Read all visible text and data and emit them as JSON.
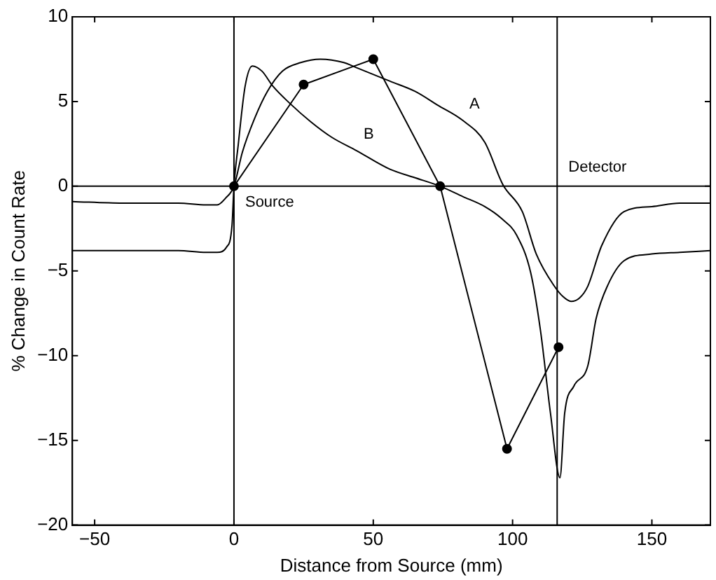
{
  "chart_data": {
    "type": "line",
    "xlabel": "Distance from Source (mm)",
    "ylabel": "% Change in Count Rate",
    "xlim": [
      -58,
      171
    ],
    "ylim": [
      -20,
      10
    ],
    "xticks": [
      -50,
      0,
      50,
      100,
      150
    ],
    "yticks": [
      -20,
      -15,
      -10,
      -5,
      0,
      5,
      10
    ],
    "grid": false,
    "legend": false,
    "series": [
      {
        "name": "A",
        "color": "#000000",
        "marker": "none",
        "x": [
          -58,
          -40,
          -20,
          -10,
          -6,
          -3,
          0,
          3,
          7.4,
          12,
          17.4,
          24,
          31,
          39.4,
          44,
          56,
          65,
          73,
          82,
          90,
          96.5,
          103.5,
          108.5,
          115,
          118,
          121,
          124,
          127,
          132,
          140,
          150,
          160,
          171
        ],
        "values": [
          -0.9,
          -1,
          -1,
          -1.1,
          -1.1,
          -0.7,
          0,
          2,
          4,
          5.6,
          6.8,
          7.3,
          7.5,
          7.3,
          7,
          6.2,
          5.6,
          4.8,
          3.9,
          2.6,
          0.1,
          -1.5,
          -4,
          -5.9,
          -6.5,
          -6.8,
          -6.6,
          -5.9,
          -3.5,
          -1.5,
          -1.2,
          -1,
          -1
        ]
      },
      {
        "name": "B",
        "color": "#000000",
        "marker": "none",
        "x": [
          -58,
          -40,
          -20,
          -10,
          -6,
          -2.7,
          -0.7,
          0,
          1.5,
          4,
          6.6,
          10,
          14,
          20,
          27.6,
          35,
          44,
          56,
          65,
          74,
          82,
          90,
          96,
          101.5,
          106.5,
          110,
          113.6,
          117,
          118.7,
          122,
          127,
          130,
          134,
          140,
          150,
          160,
          171
        ],
        "values": [
          -3.8,
          -3.8,
          -3.8,
          -3.9,
          -3.9,
          -3.6,
          -2.3,
          0,
          2.4,
          5.9,
          7.1,
          6.8,
          5.9,
          4.9,
          3.8,
          2.9,
          2.1,
          1,
          0.5,
          0,
          -0.6,
          -1.2,
          -1.9,
          -2.9,
          -5.1,
          -8.5,
          -13.4,
          -17.2,
          -13.4,
          -11.8,
          -10.6,
          -7.8,
          -5.9,
          -4.4,
          -4,
          -3.9,
          -3.8
        ]
      },
      {
        "color": "#000000",
        "marker": "circle",
        "x": [
          0,
          25,
          50,
          74,
          98,
          116.5
        ],
        "values": [
          0,
          6,
          7.5,
          0,
          -15.5,
          -9.5
        ]
      }
    ],
    "ref_lines": [
      {
        "axis": "y",
        "value": 0
      },
      {
        "axis": "x",
        "value": 0,
        "label": "Source"
      },
      {
        "axis": "x",
        "value": 116,
        "label": "Detector"
      }
    ]
  }
}
